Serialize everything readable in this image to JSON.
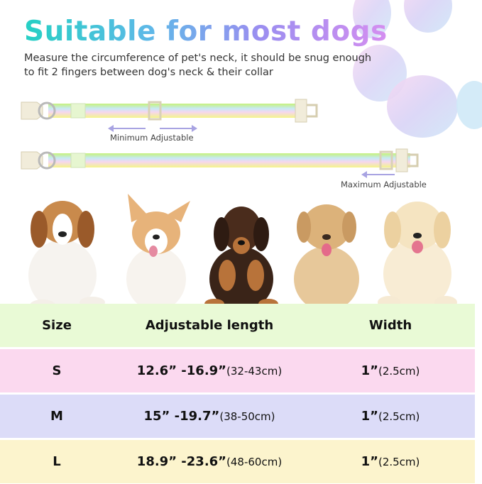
{
  "title": "Suitable for most dogs",
  "description": "Measure the circumference of pet's neck, it should be snug enough to fit 2 fingers between dog's neck & their collar",
  "collars": {
    "min_label": "Minimum Adjustable",
    "max_label": "Maximum Adjustable"
  },
  "table": {
    "headers": {
      "size": "Size",
      "length": "Adjustable length",
      "width": "Width"
    },
    "rows": [
      {
        "size": "S",
        "length_in": "12.6” -16.9”",
        "length_cm": "(32-43cm)",
        "width_in": "1”",
        "width_cm": "(2.5cm)"
      },
      {
        "size": "M",
        "length_in": "15” -19.7”",
        "length_cm": "(38-50cm)",
        "width_in": "1”",
        "width_cm": "(2.5cm)"
      },
      {
        "size": "L",
        "length_in": "18.9” -23.6”",
        "length_cm": "(48-60cm)",
        "width_in": "1”",
        "width_cm": "(2.5cm)"
      }
    ]
  },
  "colors": {
    "header_row": "#e9fad6",
    "row_s": "#fbd9ef",
    "row_m": "#dcdcf8",
    "row_l": "#fcf4cd"
  }
}
